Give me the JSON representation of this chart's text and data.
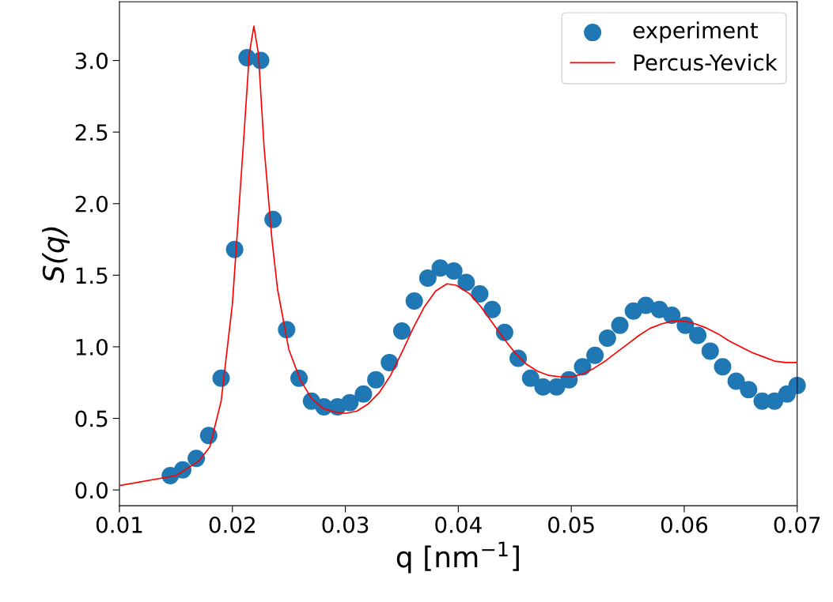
{
  "chart_data": {
    "type": "scatter",
    "xlabel": "q [nm$^{−1}$]",
    "ylabel": "S(q)",
    "xlim": [
      0.01,
      0.07
    ],
    "xticks": [
      {
        "value": 0.01,
        "label": "0.01"
      },
      {
        "value": 0.02,
        "label": "0.02"
      },
      {
        "value": 0.03,
        "label": "0.03"
      },
      {
        "value": 0.04,
        "label": "0.04"
      },
      {
        "value": 0.05,
        "label": "0.05"
      },
      {
        "value": 0.06,
        "label": "0.06"
      },
      {
        "value": 0.07,
        "label": "0.07"
      }
    ],
    "ylim": [
      -0.11,
      3.41
    ],
    "yticks": [
      {
        "value": 0,
        "label": "0.0"
      },
      {
        "value": 0.5,
        "label": "0.5"
      },
      {
        "value": 1,
        "label": "1.0"
      },
      {
        "value": 1.5,
        "label": "1.5"
      },
      {
        "value": 2,
        "label": "2.0"
      },
      {
        "value": 2.5,
        "label": "2.5"
      },
      {
        "value": 3,
        "label": "3.0"
      }
    ],
    "legend": "top right",
    "grid": false,
    "series": [
      {
        "name": "experiment",
        "marker": "circle",
        "color": "#1f77b4",
        "x": [
          0.0145,
          0.0156,
          0.0168,
          0.0179,
          0.019,
          0.0202,
          0.0213,
          0.0225,
          0.0236,
          0.0248,
          0.0259,
          0.027,
          0.0281,
          0.0293,
          0.0304,
          0.0316,
          0.0327,
          0.0339,
          0.035,
          0.0361,
          0.0373,
          0.0384,
          0.0396,
          0.0407,
          0.0419,
          0.043,
          0.0441,
          0.0453,
          0.0464,
          0.0475,
          0.0487,
          0.0498,
          0.051,
          0.0521,
          0.0532,
          0.0543,
          0.0555,
          0.0566,
          0.0578,
          0.0589,
          0.0601,
          0.0612,
          0.0623,
          0.0634,
          0.0646,
          0.0657,
          0.0669,
          0.068,
          0.0691,
          0.07
        ],
        "values": [
          0.1,
          0.14,
          0.22,
          0.38,
          0.78,
          1.68,
          3.02,
          3.0,
          1.89,
          1.12,
          0.78,
          0.62,
          0.58,
          0.58,
          0.61,
          0.67,
          0.77,
          0.89,
          1.11,
          1.32,
          1.48,
          1.55,
          1.53,
          1.45,
          1.37,
          1.26,
          1.1,
          0.92,
          0.78,
          0.72,
          0.72,
          0.77,
          0.86,
          0.94,
          1.06,
          1.15,
          1.25,
          1.29,
          1.26,
          1.22,
          1.15,
          1.08,
          0.97,
          0.86,
          0.76,
          0.7,
          0.62,
          0.62,
          0.67,
          0.73
        ]
      },
      {
        "name": "Percus-Yevick",
        "type": "line",
        "marker": "none",
        "line_style": "solid",
        "color": "#ff0000",
        "x": [
          0.01,
          0.015,
          0.017,
          0.018,
          0.019,
          0.02,
          0.021,
          0.0215,
          0.0219,
          0.0223,
          0.0228,
          0.0235,
          0.024,
          0.025,
          0.026,
          0.027,
          0.028,
          0.029,
          0.03,
          0.031,
          0.032,
          0.033,
          0.034,
          0.035,
          0.036,
          0.037,
          0.038,
          0.039,
          0.0398,
          0.041,
          0.042,
          0.043,
          0.044,
          0.045,
          0.046,
          0.047,
          0.048,
          0.049,
          0.05,
          0.051,
          0.052,
          0.053,
          0.054,
          0.055,
          0.056,
          0.057,
          0.058,
          0.059,
          0.06,
          0.061,
          0.062,
          0.063,
          0.064,
          0.065,
          0.066,
          0.067,
          0.068,
          0.069,
          0.07
        ],
        "values": [
          0.03,
          0.1,
          0.2,
          0.3,
          0.62,
          1.3,
          2.45,
          3.05,
          3.24,
          3.05,
          2.4,
          1.75,
          1.4,
          0.98,
          0.77,
          0.64,
          0.57,
          0.545,
          0.535,
          0.55,
          0.6,
          0.68,
          0.8,
          0.96,
          1.13,
          1.28,
          1.39,
          1.44,
          1.43,
          1.37,
          1.28,
          1.17,
          1.06,
          0.96,
          0.88,
          0.83,
          0.8,
          0.79,
          0.79,
          0.81,
          0.85,
          0.9,
          0.96,
          1.02,
          1.08,
          1.13,
          1.16,
          1.18,
          1.18,
          1.16,
          1.13,
          1.09,
          1.04,
          1.0,
          0.96,
          0.93,
          0.9,
          0.89,
          0.89
        ]
      }
    ]
  }
}
